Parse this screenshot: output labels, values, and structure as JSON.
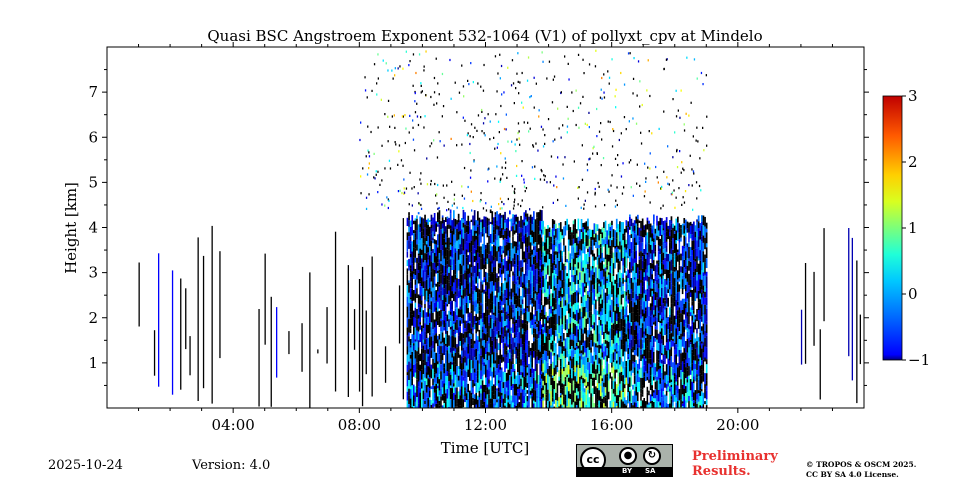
{
  "chart_data": {
    "type": "heatmap",
    "title": "Quasi BSC Angstroem Exponent 532-1064 (V1) of pollyxt_cpv at Mindelo",
    "xlabel": "Time [UTC]",
    "ylabel": "Height [km]",
    "xlim": [
      0,
      24
    ],
    "ylim": [
      0,
      8
    ],
    "xticks": [
      4,
      8,
      12,
      16,
      20
    ],
    "xtick_labels": [
      "04:00",
      "08:00",
      "12:00",
      "16:00",
      "20:00"
    ],
    "yticks": [
      1,
      2,
      3,
      4,
      5,
      6,
      7
    ],
    "ytick_labels": [
      "1",
      "2",
      "3",
      "4",
      "5",
      "6",
      "7"
    ],
    "colorbar": {
      "range": [
        -1,
        3
      ],
      "ticks": [
        -1,
        0,
        1,
        2,
        3
      ],
      "tick_labels": [
        "−1",
        "0",
        "1",
        "2",
        "3"
      ],
      "colormap": "jet"
    },
    "regions": [
      {
        "x": [
          1.0,
          3.8
        ],
        "y": [
          0,
          4.1
        ],
        "pattern": "sparse profiles",
        "value": -0.5
      },
      {
        "x": [
          4.8,
          9.5
        ],
        "y": [
          0,
          4.3
        ],
        "pattern": "sparse profiles",
        "value": -0.5
      },
      {
        "x": [
          9.5,
          13.8
        ],
        "y": [
          0,
          4.4
        ],
        "pattern": "dense",
        "value": -0.4
      },
      {
        "x": [
          13.8,
          16.5
        ],
        "y": [
          0,
          4.2
        ],
        "pattern": "dense",
        "value": 0.3
      },
      {
        "x": [
          16.5,
          19.0
        ],
        "y": [
          0,
          4.3
        ],
        "pattern": "dense",
        "value": -0.3
      },
      {
        "x": [
          8.0,
          19.0
        ],
        "y": [
          4.4,
          8.0
        ],
        "pattern": "noise",
        "value": 0.5
      },
      {
        "x": [
          22.0,
          24.0
        ],
        "y": [
          0,
          4.1
        ],
        "pattern": "sparse profiles",
        "value": -0.8
      }
    ]
  },
  "footer": {
    "date": "2025-10-24",
    "version": "Version: 4.0",
    "preliminary_line1": "Preliminary",
    "preliminary_line2": "Results.",
    "copyright_line1": "© TROPOS & OSCM 2025.",
    "copyright_line2": "CC BY SA 4.0 License.",
    "cc_label": "cc",
    "by_label": "BY",
    "sa_label": "SA"
  }
}
